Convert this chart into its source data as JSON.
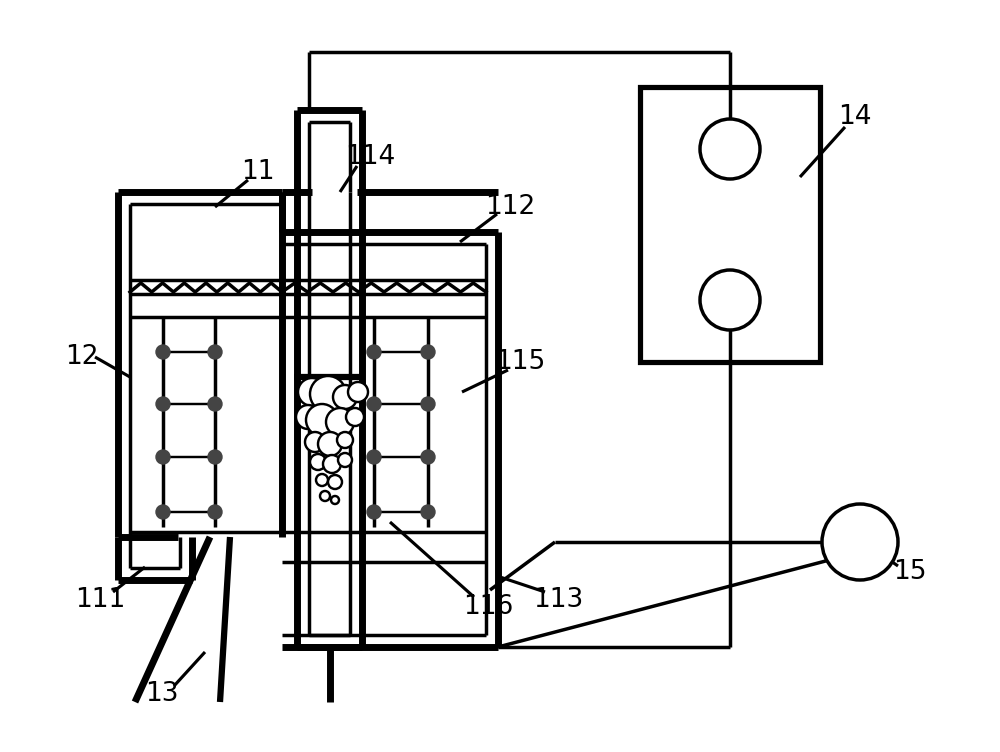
{
  "bg_color": "#ffffff",
  "line_color": "#000000",
  "lw": 2.5,
  "tlw": 5.0
}
